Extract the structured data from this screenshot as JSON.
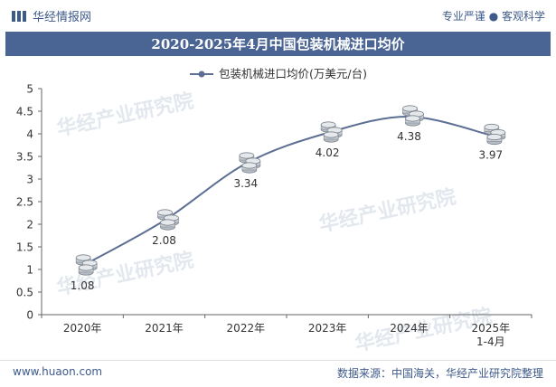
{
  "header": {
    "brand": "华经情报网",
    "tagline": "专业严谨 ● 客观科学"
  },
  "title": "2020-2025年4月中国包装机械进口均价",
  "footer": {
    "website": "www.huaon.com",
    "source": "数据来源：中国海关，华经产业研究院整理"
  },
  "watermark": "华经产业研究院",
  "colors": {
    "line": "#5c6f93",
    "brand": "#3d5a8a",
    "titlebar": "#4a6593",
    "marker": "#9aa3ad"
  },
  "chart_data": {
    "type": "line",
    "categories": [
      "2020年",
      "2021年",
      "2022年",
      "2023年",
      "2024年",
      "2025年\n1-4月"
    ],
    "series": [
      {
        "name": "包装机械进口均价(万美元/台)",
        "values": [
          1.08,
          2.08,
          3.34,
          4.02,
          4.38,
          3.97
        ]
      }
    ],
    "yticks": [
      "0",
      "0.5",
      "1",
      "1.5",
      "2",
      "2.5",
      "3",
      "3.5",
      "4",
      "4.5",
      "5"
    ],
    "ylim": [
      0,
      5
    ],
    "legend": "top-center",
    "grid": false
  }
}
